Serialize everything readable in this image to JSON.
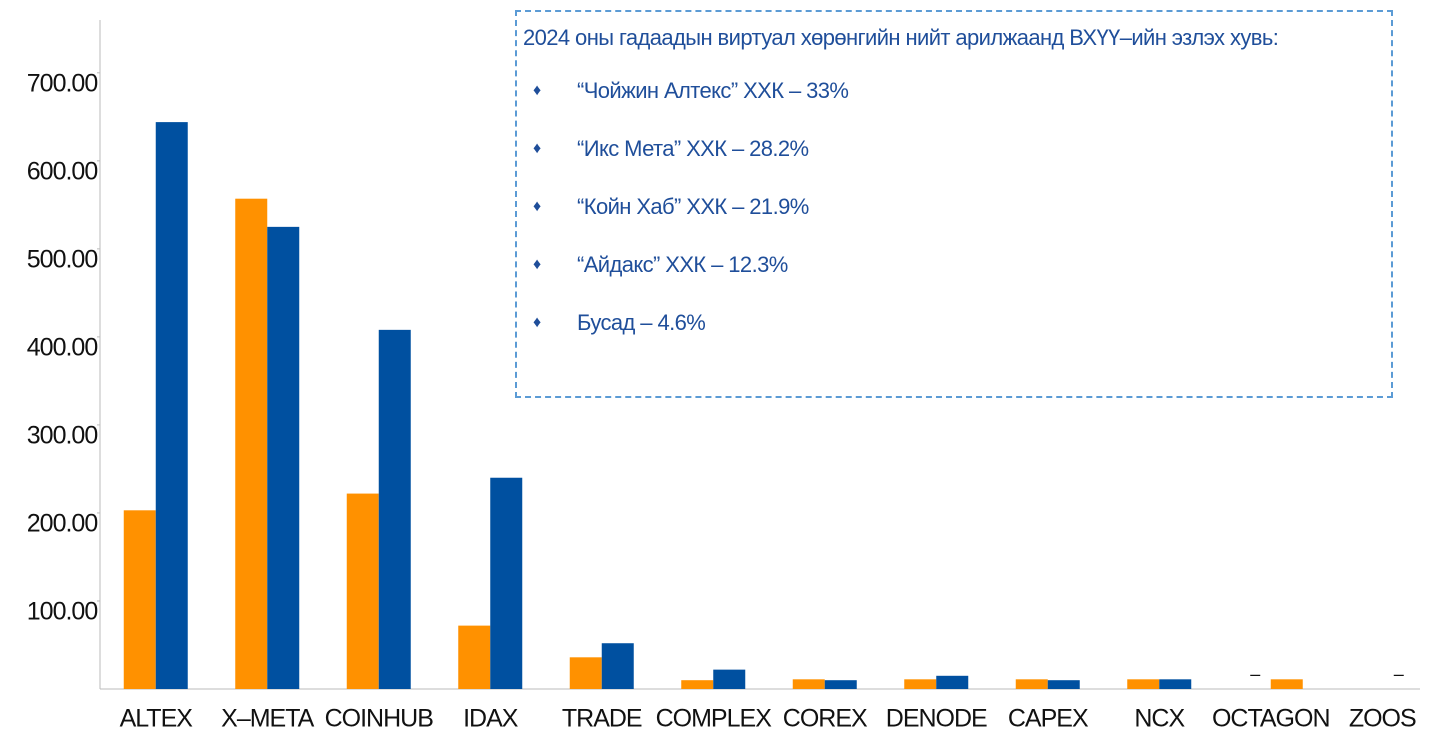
{
  "chart_data": {
    "type": "bar",
    "categories": [
      "ALTEX",
      "X–META",
      "COINHUB",
      "IDAX",
      "TRADE",
      "COMPLEX",
      "COREX",
      "DENODE",
      "CAPEX",
      "NCX",
      "OCTAGON",
      "ZOOS"
    ],
    "series": [
      {
        "color": "#ff9100",
        "values": [
          203,
          557,
          222,
          72,
          36,
          10,
          11,
          11,
          11,
          11,
          null,
          null
        ],
        "value_labels": [
          null,
          null,
          null,
          null,
          null,
          null,
          null,
          null,
          null,
          null,
          "–",
          null
        ]
      },
      {
        "color": "#0050a0",
        "colors": [
          "#0050a0",
          "#0050a0",
          "#0050a0",
          "#0050a0",
          "#0050a0",
          "#0050a0",
          "#0050a0",
          "#0050a0",
          "#0050a0",
          "#0050a0",
          "#ff9100",
          "#0050a0"
        ],
        "values": [
          644,
          525,
          408,
          240,
          52,
          22,
          10,
          15,
          10,
          11,
          11,
          null
        ],
        "value_labels": [
          null,
          null,
          null,
          null,
          null,
          null,
          null,
          null,
          null,
          null,
          null,
          "–"
        ]
      }
    ],
    "ylim": [
      0,
      760
    ],
    "yticks": [
      {
        "value": 100,
        "label": "100.00"
      },
      {
        "value": 200,
        "label": "200.00"
      },
      {
        "value": 300,
        "label": "300.00"
      },
      {
        "value": 400,
        "label": "400.00"
      },
      {
        "value": 500,
        "label": "500.00"
      },
      {
        "value": 600,
        "label": "600.00"
      },
      {
        "value": 700,
        "label": "700.00"
      }
    ],
    "grid": false,
    "annotation": {
      "heading": "2024 оны гадаадын виртуал хөрөнгийн нийт арилжаанд ВХҮҮ–ийн эзлэх хувь:",
      "items": [
        "“Чойжин Алтекс” ХХК – 33%",
        "“Икс Мета” ХХК – 28.2%",
        "“Койн Хаб” ХХК – 21.9%",
        "“Айдакс” ХХК – 12.3%",
        "Бусад – 4.6%"
      ]
    }
  }
}
